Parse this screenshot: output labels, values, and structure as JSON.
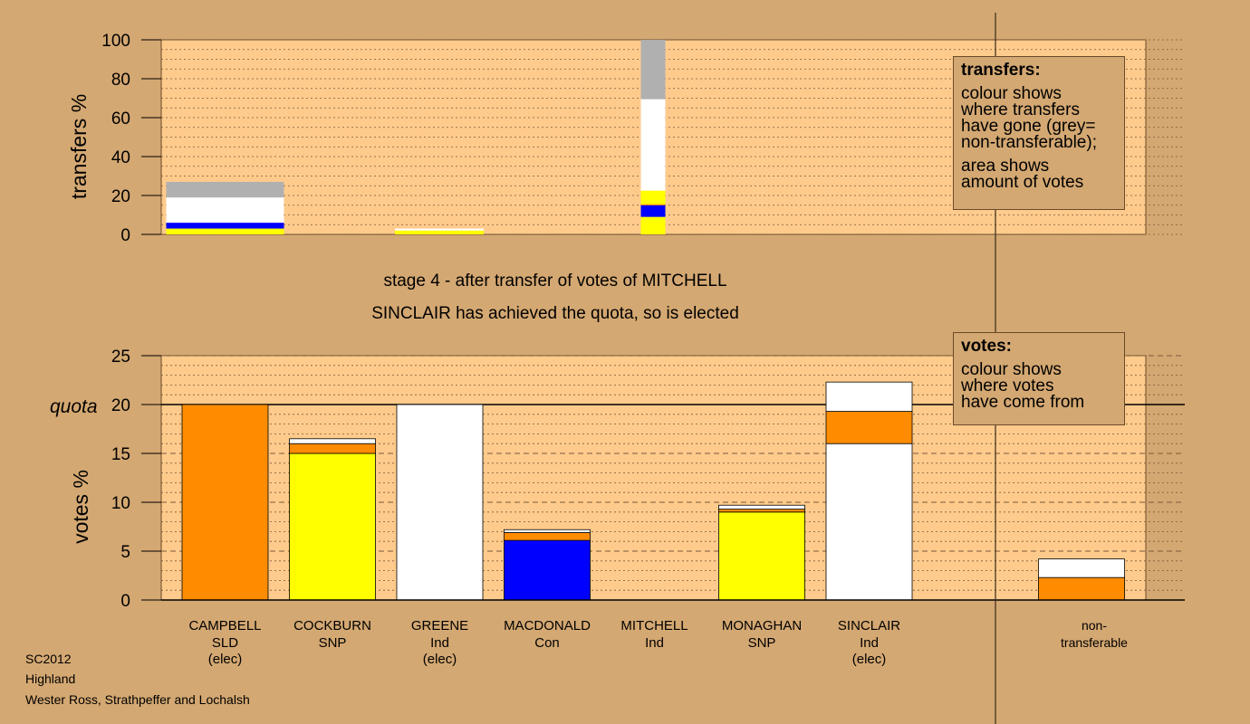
{
  "stage_title": "stage 4 - after transfer of votes of MITCHELL",
  "stage_status": "SINCLAIR has achieved the quota, so is elected",
  "colors": {
    "background": "#d4a872",
    "plot_bg": "#ffcb8c",
    "SLD": "#ff8c00",
    "SNP": "#ffff00",
    "Ind": "#ffffff",
    "Con": "#0000ff",
    "nontransferable": "#b0b0b0"
  },
  "transfers_legend": {
    "title": "transfers:",
    "line1": "colour shows",
    "line2": "where transfers",
    "line3": "have gone (grey=",
    "line4": "non-transferable);",
    "line5": "area shows",
    "line6": "amount of votes"
  },
  "votes_legend": {
    "title": "votes:",
    "line1": "colour shows",
    "line2": "where votes",
    "line3": "have come from"
  },
  "footer": {
    "line1": "SC2012",
    "line2": "Highland",
    "line3": "Wester Ross, Strathpeffer and Lochalsh"
  },
  "candidates": [
    {
      "name": "CAMPBELL",
      "party": "SLD",
      "status": "(elec)"
    },
    {
      "name": "COCKBURN",
      "party": "SNP",
      "status": ""
    },
    {
      "name": "GREENE",
      "party": "Ind",
      "status": "(elec)"
    },
    {
      "name": "MACDONALD",
      "party": "Con",
      "status": ""
    },
    {
      "name": "MITCHELL",
      "party": "Ind",
      "status": ""
    },
    {
      "name": "MONAGHAN",
      "party": "SNP",
      "status": ""
    },
    {
      "name": "SINCLAIR",
      "party": "Ind",
      "status": "(elec)"
    },
    {
      "name": "non-",
      "party": "transferable",
      "status": ""
    }
  ],
  "chart_data": [
    {
      "type": "bar",
      "ylabel": "transfers %",
      "ylim": [
        0,
        100
      ],
      "yticks": [
        0,
        20,
        40,
        60,
        80,
        100
      ],
      "bars": [
        {
          "candidate": "CAMPBELL",
          "segments": [
            {
              "party": "SNP",
              "value": 3
            },
            {
              "party": "Con",
              "value": 3
            },
            {
              "party": "Ind",
              "value": 13
            },
            {
              "party": "nontransferable",
              "value": 8
            }
          ]
        },
        {
          "candidate": "GREENE",
          "segments": [
            {
              "party": "SNP",
              "value": 2
            },
            {
              "party": "Ind",
              "value": 1
            }
          ]
        },
        {
          "candidate": "MITCHELL",
          "segments": [
            {
              "party": "SNP",
              "value": 9
            },
            {
              "party": "Con",
              "value": 6
            },
            {
              "party": "SLD",
              "value": 0.5
            },
            {
              "party": "SNP",
              "value": 7
            },
            {
              "party": "Ind",
              "value": 47
            },
            {
              "party": "nontransferable",
              "value": 30.5
            }
          ]
        }
      ]
    },
    {
      "type": "bar",
      "ylabel": "votes %",
      "ylim": [
        0,
        25
      ],
      "yticks": [
        0,
        5,
        10,
        15,
        20,
        25
      ],
      "quota": 20,
      "quota_label": "quota",
      "bars": [
        {
          "candidate": "CAMPBELL",
          "segments": [
            {
              "party": "SLD",
              "value": 20
            }
          ]
        },
        {
          "candidate": "COCKBURN",
          "segments": [
            {
              "party": "SNP",
              "value": 15
            },
            {
              "party": "SLD",
              "value": 1
            },
            {
              "party": "Ind",
              "value": 0.5
            }
          ]
        },
        {
          "candidate": "GREENE",
          "segments": [
            {
              "party": "Ind",
              "value": 20
            }
          ]
        },
        {
          "candidate": "MACDONALD",
          "segments": [
            {
              "party": "Con",
              "value": 6.1
            },
            {
              "party": "SLD",
              "value": 0.8
            },
            {
              "party": "Ind",
              "value": 0.3
            }
          ]
        },
        {
          "candidate": "MITCHELL",
          "segments": []
        },
        {
          "candidate": "MONAGHAN",
          "segments": [
            {
              "party": "SNP",
              "value": 9
            },
            {
              "party": "SLD",
              "value": 0.3
            },
            {
              "party": "Ind",
              "value": 0.4
            }
          ]
        },
        {
          "candidate": "SINCLAIR",
          "segments": [
            {
              "party": "Ind",
              "value": 16
            },
            {
              "party": "SLD",
              "value": 3.3
            },
            {
              "party": "Ind",
              "value": 3
            }
          ]
        },
        {
          "candidate": "non-transferable",
          "segments": [
            {
              "party": "SLD",
              "value": 2.3
            },
            {
              "party": "Ind",
              "value": 1.9
            }
          ]
        }
      ]
    }
  ]
}
